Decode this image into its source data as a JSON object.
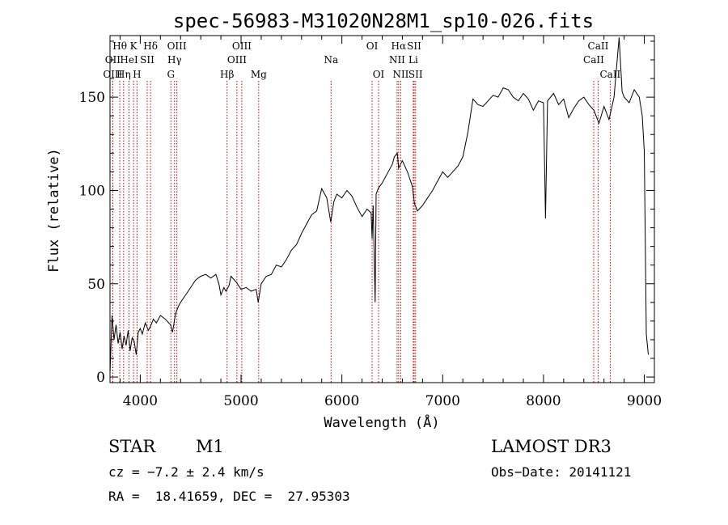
{
  "chart_data": {
    "type": "line",
    "title": "spec-56983-M31020N28M1_sp10-026.fits",
    "xlabel": "Wavelength (Å)",
    "ylabel": "Flux (relative)",
    "xlim": [
      3700,
      9100
    ],
    "ylim": [
      -3,
      183
    ],
    "xticks": [
      4000,
      5000,
      6000,
      7000,
      8000,
      9000
    ],
    "yticks": [
      0,
      50,
      100,
      150
    ],
    "grid": false,
    "series": [
      {
        "color": "#000000",
        "points": [
          [
            3700,
            2
          ],
          [
            3720,
            33
          ],
          [
            3740,
            20
          ],
          [
            3760,
            28
          ],
          [
            3780,
            18
          ],
          [
            3800,
            24
          ],
          [
            3820,
            15
          ],
          [
            3840,
            22
          ],
          [
            3860,
            17
          ],
          [
            3880,
            25
          ],
          [
            3900,
            14
          ],
          [
            3920,
            21
          ],
          [
            3940,
            19
          ],
          [
            3960,
            12
          ],
          [
            3980,
            24
          ],
          [
            4000,
            26
          ],
          [
            4020,
            23
          ],
          [
            4050,
            29
          ],
          [
            4080,
            25
          ],
          [
            4100,
            27
          ],
          [
            4130,
            31
          ],
          [
            4160,
            29
          ],
          [
            4200,
            33
          ],
          [
            4250,
            31
          ],
          [
            4300,
            28
          ],
          [
            4320,
            24
          ],
          [
            4350,
            34
          ],
          [
            4380,
            38
          ],
          [
            4400,
            40
          ],
          [
            4450,
            44
          ],
          [
            4500,
            48
          ],
          [
            4550,
            52
          ],
          [
            4600,
            54
          ],
          [
            4650,
            55
          ],
          [
            4700,
            53
          ],
          [
            4750,
            55
          ],
          [
            4780,
            50
          ],
          [
            4800,
            44
          ],
          [
            4830,
            48
          ],
          [
            4850,
            46
          ],
          [
            4880,
            49
          ],
          [
            4900,
            54
          ],
          [
            4950,
            51
          ],
          [
            5000,
            47
          ],
          [
            5050,
            48
          ],
          [
            5100,
            46
          ],
          [
            5150,
            47
          ],
          [
            5170,
            40
          ],
          [
            5200,
            50
          ],
          [
            5250,
            54
          ],
          [
            5300,
            55
          ],
          [
            5350,
            60
          ],
          [
            5400,
            59
          ],
          [
            5450,
            63
          ],
          [
            5500,
            68
          ],
          [
            5550,
            71
          ],
          [
            5600,
            77
          ],
          [
            5650,
            82
          ],
          [
            5700,
            87
          ],
          [
            5750,
            89
          ],
          [
            5800,
            101
          ],
          [
            5850,
            96
          ],
          [
            5890,
            83
          ],
          [
            5920,
            94
          ],
          [
            5950,
            98
          ],
          [
            6000,
            96
          ],
          [
            6050,
            100
          ],
          [
            6100,
            97
          ],
          [
            6150,
            91
          ],
          [
            6200,
            86
          ],
          [
            6250,
            90
          ],
          [
            6290,
            88
          ],
          [
            6300,
            74
          ],
          [
            6310,
            92
          ],
          [
            6330,
            40
          ],
          [
            6340,
            98
          ],
          [
            6360,
            101
          ],
          [
            6400,
            104
          ],
          [
            6450,
            109
          ],
          [
            6500,
            114
          ],
          [
            6520,
            118
          ],
          [
            6550,
            120
          ],
          [
            6563,
            112
          ],
          [
            6600,
            116
          ],
          [
            6650,
            110
          ],
          [
            6700,
            102
          ],
          [
            6720,
            93
          ],
          [
            6750,
            89
          ],
          [
            6800,
            92
          ],
          [
            6850,
            96
          ],
          [
            6900,
            100
          ],
          [
            6950,
            105
          ],
          [
            7000,
            110
          ],
          [
            7050,
            107
          ],
          [
            7100,
            110
          ],
          [
            7150,
            113
          ],
          [
            7200,
            118
          ],
          [
            7250,
            131
          ],
          [
            7300,
            149
          ],
          [
            7350,
            146
          ],
          [
            7400,
            145
          ],
          [
            7450,
            148
          ],
          [
            7500,
            151
          ],
          [
            7550,
            150
          ],
          [
            7600,
            155
          ],
          [
            7650,
            154
          ],
          [
            7700,
            150
          ],
          [
            7750,
            148
          ],
          [
            7800,
            152
          ],
          [
            7850,
            149
          ],
          [
            7900,
            143
          ],
          [
            7950,
            148
          ],
          [
            8000,
            147
          ],
          [
            8020,
            85
          ],
          [
            8040,
            148
          ],
          [
            8100,
            152
          ],
          [
            8150,
            146
          ],
          [
            8200,
            149
          ],
          [
            8250,
            139
          ],
          [
            8300,
            144
          ],
          [
            8350,
            148
          ],
          [
            8400,
            150
          ],
          [
            8450,
            146
          ],
          [
            8500,
            143
          ],
          [
            8550,
            136
          ],
          [
            8600,
            145
          ],
          [
            8650,
            138
          ],
          [
            8700,
            150
          ],
          [
            8750,
            182
          ],
          [
            8780,
            153
          ],
          [
            8800,
            150
          ],
          [
            8850,
            147
          ],
          [
            8900,
            154
          ],
          [
            8950,
            150
          ],
          [
            8980,
            140
          ],
          [
            9000,
            121
          ],
          [
            9020,
            23
          ],
          [
            9040,
            12
          ]
        ]
      }
    ],
    "spectral_lines": [
      {
        "name": "Hθ",
        "wavelength": 3797,
        "row": 1
      },
      {
        "name": "OII",
        "wavelength": 3727,
        "row": 2
      },
      {
        "name": "OIII",
        "wavelength": 3727,
        "row": 3
      },
      {
        "name": "HeI",
        "wavelength": 3889,
        "row": 2
      },
      {
        "name": "Hη",
        "wavelength": 3835,
        "row": 3
      },
      {
        "name": "K",
        "wavelength": 3934,
        "row": 1
      },
      {
        "name": "SII",
        "wavelength": 4069,
        "row": 2
      },
      {
        "name": "H",
        "wavelength": 3968,
        "row": 3
      },
      {
        "name": "Hδ",
        "wavelength": 4102,
        "row": 1
      },
      {
        "name": "OIII",
        "wavelength": 4363,
        "row": 1
      },
      {
        "name": "Hγ",
        "wavelength": 4340,
        "row": 2
      },
      {
        "name": "G",
        "wavelength": 4304,
        "row": 3
      },
      {
        "name": "Hβ",
        "wavelength": 4861,
        "row": 3
      },
      {
        "name": "OIII",
        "wavelength": 5007,
        "row": 1
      },
      {
        "name": "OIII",
        "wavelength": 4959,
        "row": 2
      },
      {
        "name": "Mg",
        "wavelength": 5175,
        "row": 3
      },
      {
        "name": "Na",
        "wavelength": 5893,
        "row": 2
      },
      {
        "name": "OI",
        "wavelength": 6300,
        "row": 1
      },
      {
        "name": "OI",
        "wavelength": 6364,
        "row": 3
      },
      {
        "name": "Hα",
        "wavelength": 6563,
        "row": 1
      },
      {
        "name": "NII",
        "wavelength": 6548,
        "row": 2
      },
      {
        "name": "NII",
        "wavelength": 6584,
        "row": 3
      },
      {
        "name": "SII",
        "wavelength": 6717,
        "row": 1
      },
      {
        "name": "Li",
        "wavelength": 6708,
        "row": 2
      },
      {
        "name": "SII",
        "wavelength": 6731,
        "row": 3
      },
      {
        "name": "CaII",
        "wavelength": 8542,
        "row": 1
      },
      {
        "name": "CaII",
        "wavelength": 8498,
        "row": 2
      },
      {
        "name": "CaII",
        "wavelength": 8662,
        "row": 3
      }
    ],
    "line_marker_color": "#cc0000"
  },
  "info": {
    "object_class": "STAR",
    "subclass": "M1",
    "survey": "LAMOST DR3",
    "redshift_text": "cz = −7.2 ± 2.4 km/s",
    "obs_date": "Obs−Date: 20141121",
    "coords": "RA =  18.41659, DEC =  27.95303"
  }
}
